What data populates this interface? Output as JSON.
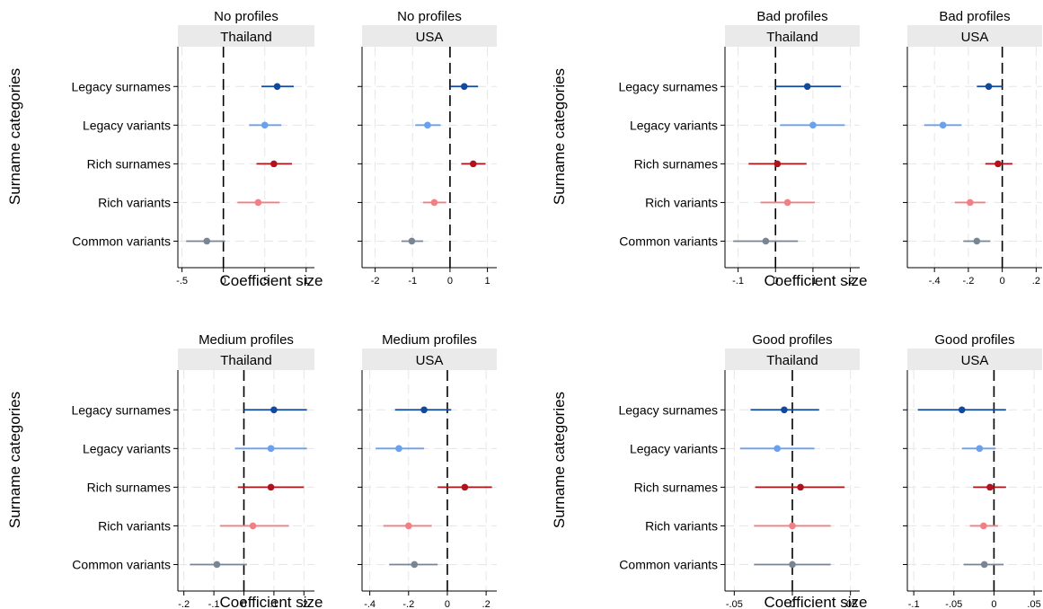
{
  "y_axis_title": "Surname categories",
  "x_axis_title": "Coefficient size",
  "categories": [
    "Legacy surnames",
    "Legacy variants",
    "Rich surnames",
    "Rich variants",
    "Common variants"
  ],
  "series_colors": [
    "#0f4aa0",
    "#6aa0ec",
    "#b3121b",
    "#f07f86",
    "#7a8593"
  ],
  "chart_data": [
    {
      "type": "scatter",
      "title": "No profiles",
      "subtitle": "Thailand",
      "xlabel": "Coefficient size",
      "ylabel": "Surname categories",
      "xlim": [
        -0.55,
        1.1
      ],
      "xticks": [
        -0.5,
        0,
        0.5,
        1
      ],
      "xtick_labels": [
        "-.5",
        "0",
        ".5",
        "1"
      ],
      "grid": true,
      "points": [
        {
          "category": "Legacy surnames",
          "estimate": 0.65,
          "ci_low": 0.46,
          "ci_high": 0.85
        },
        {
          "category": "Legacy variants",
          "estimate": 0.5,
          "ci_low": 0.31,
          "ci_high": 0.7
        },
        {
          "category": "Rich surnames",
          "estimate": 0.61,
          "ci_low": 0.4,
          "ci_high": 0.83
        },
        {
          "category": "Rich variants",
          "estimate": 0.42,
          "ci_low": 0.17,
          "ci_high": 0.68
        },
        {
          "category": "Common variants",
          "estimate": -0.2,
          "ci_low": -0.45,
          "ci_high": 0.02
        }
      ]
    },
    {
      "type": "scatter",
      "title": "No profiles",
      "subtitle": "USA",
      "xlabel": "Coefficient size",
      "ylabel": "Surname categories",
      "xlim": [
        -2.35,
        1.25
      ],
      "xticks": [
        -2,
        -1,
        0,
        1
      ],
      "xtick_labels": [
        "-2",
        "-1",
        "0",
        "1"
      ],
      "grid": true,
      "points": [
        {
          "category": "Legacy surnames",
          "estimate": 0.38,
          "ci_low": 0.02,
          "ci_high": 0.75
        },
        {
          "category": "Legacy variants",
          "estimate": -0.6,
          "ci_low": -0.93,
          "ci_high": -0.25
        },
        {
          "category": "Rich surnames",
          "estimate": 0.62,
          "ci_low": 0.3,
          "ci_high": 0.95
        },
        {
          "category": "Rich variants",
          "estimate": -0.42,
          "ci_low": -0.72,
          "ci_high": -0.1
        },
        {
          "category": "Common variants",
          "estimate": -1.02,
          "ci_low": -1.3,
          "ci_high": -0.72
        }
      ]
    },
    {
      "type": "scatter",
      "title": "Bad profiles",
      "subtitle": "Thailand",
      "xlabel": "Coefficient size",
      "ylabel": "Surname categories",
      "xlim": [
        -0.135,
        0.225
      ],
      "xticks": [
        -0.1,
        0,
        0.1,
        0.2
      ],
      "xtick_labels": [
        "-.1",
        "0",
        ".1",
        ".2"
      ],
      "grid": true,
      "points": [
        {
          "category": "Legacy surnames",
          "estimate": 0.085,
          "ci_low": 0.0,
          "ci_high": 0.175
        },
        {
          "category": "Legacy variants",
          "estimate": 0.1,
          "ci_low": 0.012,
          "ci_high": 0.185
        },
        {
          "category": "Rich surnames",
          "estimate": 0.005,
          "ci_low": -0.072,
          "ci_high": 0.083
        },
        {
          "category": "Rich variants",
          "estimate": 0.032,
          "ci_low": -0.04,
          "ci_high": 0.105
        },
        {
          "category": "Common variants",
          "estimate": -0.026,
          "ci_low": -0.113,
          "ci_high": 0.06
        }
      ]
    },
    {
      "type": "scatter",
      "title": "Bad profiles",
      "subtitle": "USA",
      "xlabel": "Coefficient size",
      "ylabel": "Surname categories",
      "xlim": [
        -0.56,
        0.235
      ],
      "xticks": [
        -0.4,
        -0.2,
        0,
        0.2
      ],
      "xtick_labels": [
        "-.4",
        "-.2",
        "0",
        ".2"
      ],
      "grid": true,
      "points": [
        {
          "category": "Legacy surnames",
          "estimate": -0.08,
          "ci_low": -0.15,
          "ci_high": 0.0
        },
        {
          "category": "Legacy variants",
          "estimate": -0.35,
          "ci_low": -0.46,
          "ci_high": -0.24
        },
        {
          "category": "Rich surnames",
          "estimate": -0.025,
          "ci_low": -0.1,
          "ci_high": 0.06
        },
        {
          "category": "Rich variants",
          "estimate": -0.19,
          "ci_low": -0.28,
          "ci_high": -0.1
        },
        {
          "category": "Common variants",
          "estimate": -0.15,
          "ci_low": -0.23,
          "ci_high": -0.07
        }
      ]
    },
    {
      "type": "scatter",
      "title": "Medium profiles",
      "subtitle": "Thailand",
      "xlabel": "Coefficient size",
      "ylabel": "Surname categories",
      "xlim": [
        -0.22,
        0.235
      ],
      "xticks": [
        -0.2,
        -0.1,
        0,
        0.1,
        0.2
      ],
      "xtick_labels": [
        "-.2",
        "-.1",
        "0",
        ".1",
        ".2"
      ],
      "grid": true,
      "points": [
        {
          "category": "Legacy surnames",
          "estimate": 0.1,
          "ci_low": 0.0,
          "ci_high": 0.21
        },
        {
          "category": "Legacy variants",
          "estimate": 0.09,
          "ci_low": -0.03,
          "ci_high": 0.21
        },
        {
          "category": "Rich surnames",
          "estimate": 0.09,
          "ci_low": -0.02,
          "ci_high": 0.2
        },
        {
          "category": "Rich variants",
          "estimate": 0.03,
          "ci_low": -0.08,
          "ci_high": 0.15
        },
        {
          "category": "Common variants",
          "estimate": -0.09,
          "ci_low": -0.18,
          "ci_high": 0.01
        }
      ]
    },
    {
      "type": "scatter",
      "title": "Medium profiles",
      "subtitle": "USA",
      "xlabel": "Coefficient size",
      "ylabel": "Surname categories",
      "xlim": [
        -0.44,
        0.255
      ],
      "xticks": [
        -0.4,
        -0.2,
        0,
        0.2
      ],
      "xtick_labels": [
        "-.4",
        "-.2",
        "0",
        ".2"
      ],
      "grid": true,
      "points": [
        {
          "category": "Legacy surnames",
          "estimate": -0.12,
          "ci_low": -0.27,
          "ci_high": 0.02
        },
        {
          "category": "Legacy variants",
          "estimate": -0.25,
          "ci_low": -0.37,
          "ci_high": -0.12
        },
        {
          "category": "Rich surnames",
          "estimate": 0.09,
          "ci_low": -0.05,
          "ci_high": 0.23
        },
        {
          "category": "Rich variants",
          "estimate": -0.2,
          "ci_low": -0.33,
          "ci_high": -0.08
        },
        {
          "category": "Common variants",
          "estimate": -0.17,
          "ci_low": -0.3,
          "ci_high": -0.05
        }
      ]
    },
    {
      "type": "scatter",
      "title": "Good profiles",
      "subtitle": "Thailand",
      "xlabel": "Coefficient size",
      "ylabel": "Surname categories",
      "xlim": [
        -0.058,
        0.058
      ],
      "xticks": [
        -0.05,
        0,
        0.05
      ],
      "xtick_labels": [
        "-.05",
        "0",
        ".05"
      ],
      "grid": true,
      "points": [
        {
          "category": "Legacy surnames",
          "estimate": -0.007,
          "ci_low": -0.036,
          "ci_high": 0.023
        },
        {
          "category": "Legacy variants",
          "estimate": -0.013,
          "ci_low": -0.045,
          "ci_high": 0.019
        },
        {
          "category": "Rich surnames",
          "estimate": 0.007,
          "ci_low": -0.032,
          "ci_high": 0.045
        },
        {
          "category": "Rich variants",
          "estimate": 0.0,
          "ci_low": -0.033,
          "ci_high": 0.033
        },
        {
          "category": "Common variants",
          "estimate": 0.0,
          "ci_low": -0.033,
          "ci_high": 0.033
        }
      ]
    },
    {
      "type": "scatter",
      "title": "Good profiles",
      "subtitle": "USA",
      "xlabel": "Coefficient size",
      "ylabel": "Surname categories",
      "xlim": [
        -0.108,
        0.06
      ],
      "xticks": [
        -0.1,
        -0.05,
        0,
        0.05
      ],
      "xtick_labels": [
        "-.1",
        "-.05",
        "0",
        ".05"
      ],
      "grid": true,
      "points": [
        {
          "category": "Legacy surnames",
          "estimate": -0.04,
          "ci_low": -0.095,
          "ci_high": 0.015
        },
        {
          "category": "Legacy variants",
          "estimate": -0.018,
          "ci_low": -0.04,
          "ci_high": 0.002
        },
        {
          "category": "Rich surnames",
          "estimate": -0.005,
          "ci_low": -0.026,
          "ci_high": 0.015
        },
        {
          "category": "Rich variants",
          "estimate": -0.013,
          "ci_low": -0.03,
          "ci_high": 0.005
        },
        {
          "category": "Common variants",
          "estimate": -0.012,
          "ci_low": -0.038,
          "ci_high": 0.012
        }
      ]
    }
  ]
}
